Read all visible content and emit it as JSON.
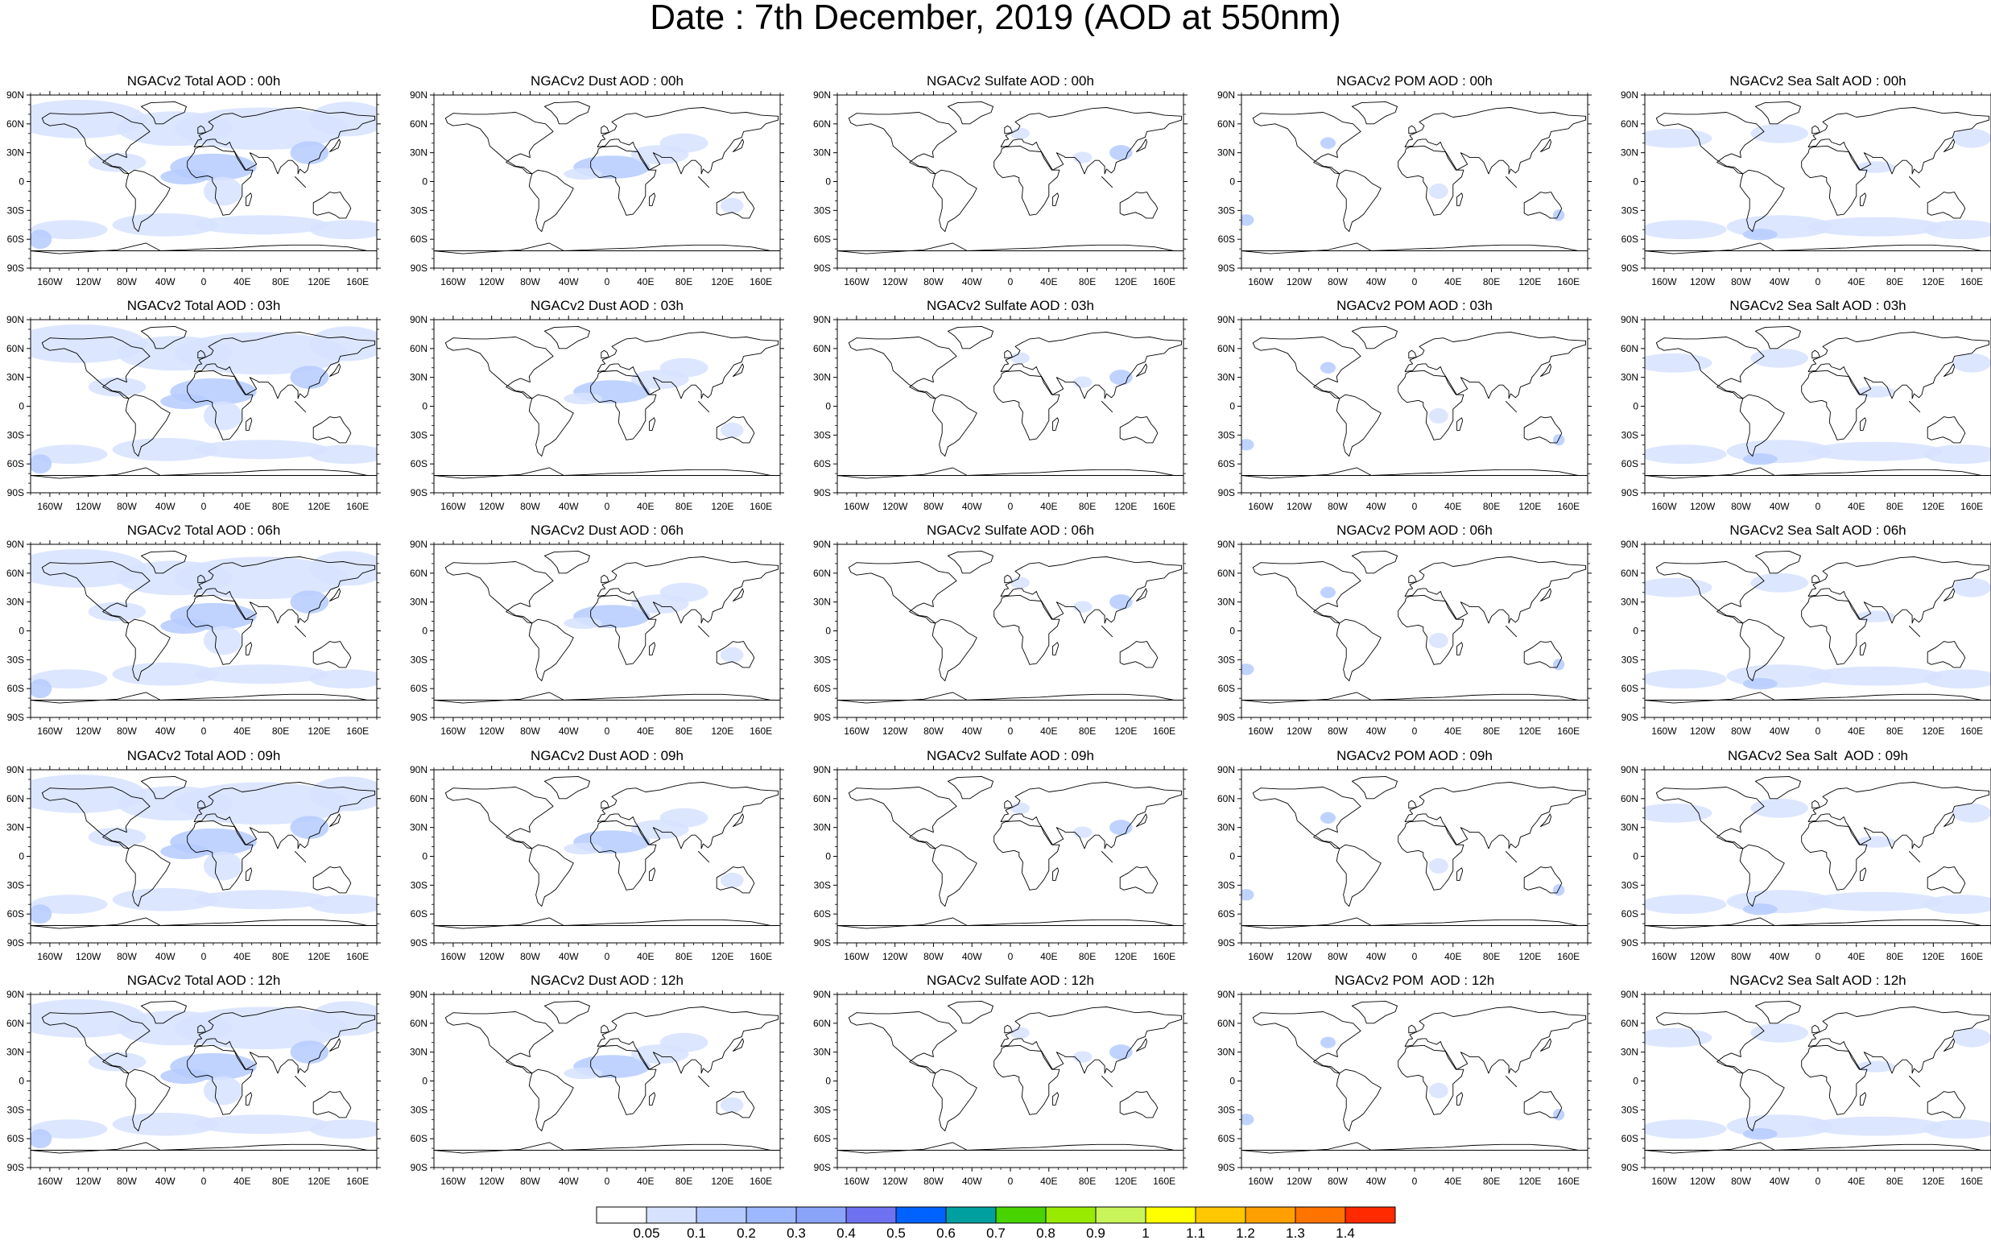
{
  "title": "Date : 7th December, 2019 (AOD at 550nm)",
  "panels": [
    [
      "NGACv2 Total AOD : 00h",
      "NGACv2 Dust AOD : 00h",
      "NGACv2 Sulfate AOD : 00h",
      "NGACv2 POM AOD : 00h",
      "NGACv2 Sea Salt AOD : 00h"
    ],
    [
      "NGACv2 Total AOD : 03h",
      "NGACv2 Dust AOD : 03h",
      "NGACv2 Sulfate AOD : 03h",
      "NGACv2 POM AOD : 03h",
      "NGACv2 Sea Salt AOD : 03h"
    ],
    [
      "NGACv2 Total AOD : 06h",
      "NGACv2 Dust AOD : 06h",
      "NGACv2 Sulfate AOD : 06h",
      "NGACv2 POM AOD : 06h",
      "NGACv2 Sea Salt AOD : 06h"
    ],
    [
      "NGACv2 Total AOD : 09h",
      "NGACv2 Dust AOD : 09h",
      "NGACv2 Sulfate AOD : 09h",
      "NGACv2 POM AOD : 09h",
      "NGACv2 Sea Salt  AOD : 09h"
    ],
    [
      "NGACv2 Total AOD : 12h",
      "NGACv2 Dust AOD : 12h",
      "NGACv2 Sulfate AOD : 12h",
      "NGACv2 POM  AOD : 12h",
      "NGACv2 Sea Salt AOD : 12h"
    ]
  ],
  "lat_labels": [
    "90N",
    "60N",
    "30N",
    "0",
    "30S",
    "60S",
    "90S"
  ],
  "lon_labels": [
    "160W",
    "120W",
    "80W",
    "40W",
    "0",
    "40E",
    "80E",
    "120E",
    "160E"
  ],
  "colorbar": {
    "labels": [
      "0.05",
      "0.1",
      "0.2",
      "0.3",
      "0.4",
      "0.5",
      "0.6",
      "0.7",
      "0.8",
      "0.9",
      "1",
      "1.1",
      "1.2",
      "1.3",
      "1.4"
    ],
    "colors": [
      "#ffffff",
      "#d6e2ff",
      "#b5cbff",
      "#9db8ff",
      "#8aa4fa",
      "#6e72f0",
      "#0062ff",
      "#00a0a0",
      "#47d400",
      "#98eb00",
      "#c9f55a",
      "#ffff00",
      "#ffc800",
      "#ffa000",
      "#ff7300",
      "#ff2a00"
    ]
  }
}
